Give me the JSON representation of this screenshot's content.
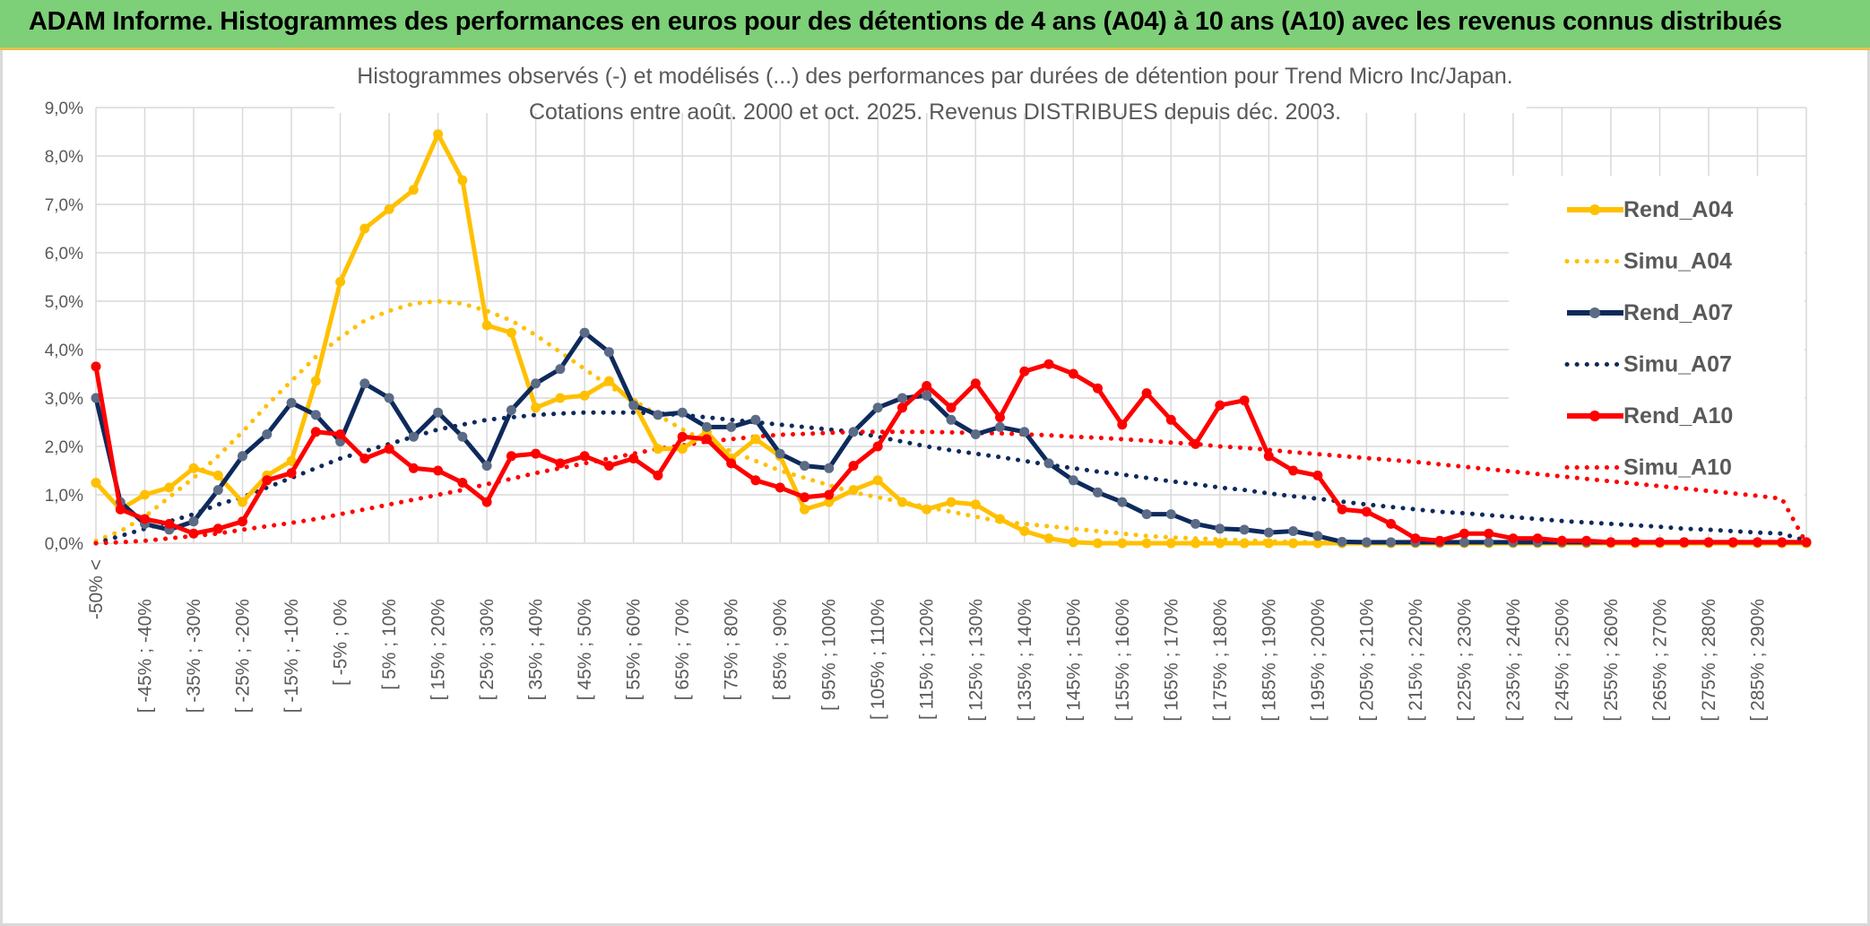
{
  "banner": {
    "title": "ADAM Informe. Histogrammes des performances en euros pour des détentions de 4 ans (A04) à 10 ans (A10) avec les revenus connus distribués"
  },
  "colors": {
    "banner_bg": "#7dcf78",
    "A04": "#ffc000",
    "A07": "#0e2a5c",
    "A10": "#ff0000",
    "A07_marker": "#5b6b86",
    "grid": "#d9d9d9",
    "axis_text": "#595959"
  },
  "chart_data": {
    "type": "line",
    "title": "Histogrammes observés (-) et modélisés (...) des performances par durées de détention pour Trend Micro Inc/Japan.",
    "subtitle": "Cotations entre août. 2000 et oct. 2025. Revenus DISTRIBUES depuis déc. 2003.",
    "xlabel": "",
    "ylabel": "",
    "ylim": [
      0,
      9
    ],
    "y_ticks": [
      "0,0%",
      "1,0%",
      "2,0%",
      "3,0%",
      "4,0%",
      "5,0%",
      "6,0%",
      "7,0%",
      "8,0%",
      "9,0%"
    ],
    "grid": true,
    "legend_position": "right",
    "x_tick_labels": [
      "-50% <",
      "[ -45% ; -40%",
      "[ -35% ; -30%",
      "[ -25% ; -20%",
      "[ -15% ; -10%",
      "[ -5% ; 0%",
      "[ 5% ; 10%",
      "[ 15% ; 20%",
      "[ 25% ; 30%",
      "[ 35% ; 40%",
      "[ 45% ; 50%",
      "[ 55% ; 60%",
      "[ 65% ; 70%",
      "[ 75% ; 80%",
      "[ 85% ; 90%",
      "[ 95% ; 100%",
      "[ 105% ; 110%",
      "[ 115% ; 120%",
      "[ 125% ; 130%",
      "[ 135% ; 140%",
      "[ 145% ; 150%",
      "[ 155% ; 160%",
      "[ 165% ; 170%",
      "[ 175% ; 180%",
      "[ 185% ; 190%",
      "[ 195% ; 200%",
      "[ 205% ; 210%",
      "[ 215% ; 220%",
      "[ 225% ; 230%",
      "[ 235% ; 240%",
      "[ 245% ; 250%",
      "[ 255% ; 260%",
      "[ 265% ; 270%",
      "[ 275% ; 280%",
      "[ 285% ; 290%"
    ],
    "series": [
      {
        "name": "Rend_A04",
        "style": "solid",
        "color": "#ffc000",
        "values": [
          1.25,
          0.7,
          1.0,
          1.15,
          1.55,
          1.4,
          0.85,
          1.4,
          1.7,
          3.35,
          5.4,
          6.5,
          6.9,
          7.3,
          8.45,
          7.5,
          4.5,
          4.35,
          2.8,
          3.0,
          3.05,
          3.35,
          2.9,
          1.95,
          1.95,
          2.3,
          1.75,
          2.15,
          1.8,
          0.7,
          0.85,
          1.1,
          1.3,
          0.85,
          0.7,
          0.85,
          0.8,
          0.5,
          0.25,
          0.1,
          0.02,
          0.0,
          0.0,
          0.0,
          0.0,
          0.0,
          0.0,
          0.0,
          0.0,
          0.0,
          0.0,
          0.0,
          0.0,
          0.0,
          0.0,
          0.0,
          0.0,
          0.0,
          0.0,
          0.0,
          0.0,
          0.0,
          0.0,
          0.0,
          0.0,
          0.0,
          0.0,
          0.0,
          0.0,
          0.0,
          0.0
        ]
      },
      {
        "name": "Simu_A04",
        "style": "dotted",
        "color": "#ffc000",
        "values": [
          0.05,
          0.25,
          0.55,
          0.95,
          1.35,
          1.8,
          2.3,
          2.85,
          3.35,
          3.85,
          4.25,
          4.6,
          4.8,
          4.95,
          5.0,
          4.95,
          4.8,
          4.6,
          4.3,
          3.95,
          3.6,
          3.25,
          2.95,
          2.65,
          2.35,
          2.1,
          1.9,
          1.7,
          1.5,
          1.35,
          1.2,
          1.05,
          0.95,
          0.85,
          0.75,
          0.65,
          0.55,
          0.45,
          0.4,
          0.35,
          0.3,
          0.25,
          0.2,
          0.15,
          0.12,
          0.1,
          0.08,
          0.06,
          0.04,
          0.03,
          0.02,
          0.01,
          0.01,
          0.0,
          0.0,
          0.0,
          0.0,
          0.0,
          0.0,
          0.0,
          0.0,
          0.0,
          0.0,
          0.0,
          0.0,
          0.0,
          0.0,
          0.0,
          0.0,
          0.0,
          0.0
        ]
      },
      {
        "name": "Rend_A07",
        "style": "solid",
        "color": "#0e2a5c",
        "values": [
          3.0,
          0.85,
          0.4,
          0.28,
          0.45,
          1.1,
          1.8,
          2.25,
          2.9,
          2.65,
          2.1,
          3.3,
          3.0,
          2.2,
          2.7,
          2.2,
          1.6,
          2.75,
          3.3,
          3.6,
          4.35,
          3.95,
          2.85,
          2.65,
          2.7,
          2.4,
          2.4,
          2.55,
          1.85,
          1.6,
          1.55,
          2.3,
          2.8,
          3.0,
          3.05,
          2.55,
          2.25,
          2.4,
          2.3,
          1.65,
          1.3,
          1.05,
          0.85,
          0.6,
          0.6,
          0.4,
          0.3,
          0.28,
          0.22,
          0.25,
          0.15,
          0.03,
          0.02,
          0.02,
          0.02,
          0.02,
          0.02,
          0.02,
          0.02,
          0.02,
          0.02,
          0.02,
          0.02,
          0.02,
          0.02,
          0.02,
          0.02,
          0.02,
          0.02,
          0.02,
          0.02
        ]
      },
      {
        "name": "Simu_A07",
        "style": "dotted",
        "color": "#0e2a5c",
        "values": [
          0.0,
          0.15,
          0.3,
          0.45,
          0.6,
          0.8,
          0.95,
          1.15,
          1.35,
          1.55,
          1.75,
          1.9,
          2.05,
          2.2,
          2.35,
          2.45,
          2.55,
          2.6,
          2.65,
          2.68,
          2.7,
          2.7,
          2.7,
          2.68,
          2.65,
          2.6,
          2.55,
          2.5,
          2.45,
          2.4,
          2.35,
          2.3,
          2.2,
          2.1,
          2.0,
          1.92,
          1.85,
          1.78,
          1.7,
          1.62,
          1.55,
          1.48,
          1.42,
          1.35,
          1.28,
          1.22,
          1.15,
          1.1,
          1.03,
          0.97,
          0.92,
          0.86,
          0.8,
          0.75,
          0.7,
          0.65,
          0.62,
          0.58,
          0.54,
          0.5,
          0.46,
          0.43,
          0.4,
          0.37,
          0.34,
          0.3,
          0.28,
          0.25,
          0.22,
          0.2,
          0.05
        ]
      },
      {
        "name": "Rend_A10",
        "style": "solid",
        "color": "#ff0000",
        "values": [
          3.65,
          0.7,
          0.5,
          0.4,
          0.2,
          0.3,
          0.45,
          1.3,
          1.45,
          2.3,
          2.25,
          1.75,
          1.95,
          1.55,
          1.5,
          1.25,
          0.85,
          1.8,
          1.85,
          1.65,
          1.8,
          1.6,
          1.75,
          1.4,
          2.2,
          2.15,
          1.65,
          1.3,
          1.15,
          0.95,
          1.0,
          1.6,
          2.0,
          2.8,
          3.25,
          2.8,
          3.3,
          2.6,
          3.55,
          3.7,
          3.5,
          3.2,
          2.45,
          3.1,
          2.55,
          2.05,
          2.85,
          2.95,
          1.8,
          1.5,
          1.4,
          0.7,
          0.65,
          0.4,
          0.1,
          0.05,
          0.2,
          0.2,
          0.1,
          0.1,
          0.05,
          0.05,
          0.02,
          0.02,
          0.02,
          0.02,
          0.02,
          0.02,
          0.02,
          0.02,
          0.02
        ]
      },
      {
        "name": "Simu_A10",
        "style": "dotted",
        "color": "#ff0000",
        "values": [
          0.0,
          0.02,
          0.05,
          0.1,
          0.15,
          0.2,
          0.28,
          0.35,
          0.42,
          0.5,
          0.6,
          0.7,
          0.8,
          0.9,
          1.0,
          1.1,
          1.22,
          1.33,
          1.45,
          1.55,
          1.65,
          1.75,
          1.85,
          1.95,
          2.02,
          2.1,
          2.15,
          2.2,
          2.24,
          2.26,
          2.28,
          2.3,
          2.3,
          2.3,
          2.3,
          2.29,
          2.28,
          2.27,
          2.25,
          2.23,
          2.2,
          2.18,
          2.15,
          2.12,
          2.08,
          2.05,
          2.0,
          1.97,
          1.93,
          1.88,
          1.84,
          1.8,
          1.76,
          1.72,
          1.68,
          1.63,
          1.58,
          1.53,
          1.48,
          1.43,
          1.38,
          1.33,
          1.28,
          1.23,
          1.18,
          1.13,
          1.08,
          1.03,
          0.98,
          0.92,
          0.0
        ]
      }
    ]
  }
}
